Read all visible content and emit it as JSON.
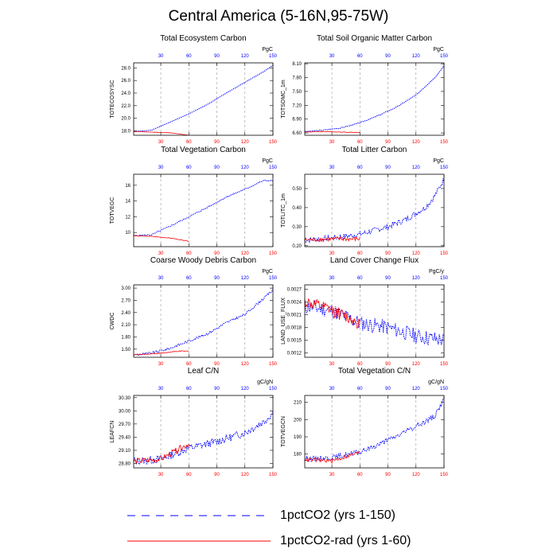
{
  "figure": {
    "title": "Central America (5-16N,95-75W)",
    "colors": {
      "series1": "#0000ff",
      "series2": "#ff0000",
      "axis": "#000000",
      "grid": "#999999"
    }
  },
  "legend": [
    {
      "label": "1pctCO2 (yrs 1-150)",
      "color": "#0000ff",
      "style": "dashed"
    },
    {
      "label": "1pctCO2-rad (yrs 1-60)",
      "color": "#ff0000",
      "style": "solid"
    }
  ],
  "chart_data": [
    {
      "type": "line",
      "title": "Total Ecosystem Carbon",
      "ylabel": "TOTECOSYSC",
      "unit": "PgC",
      "xlim": [
        1,
        150
      ],
      "ylim": [
        17.3,
        28.8
      ],
      "yticks": [
        18.0,
        20.0,
        22.0,
        24.0,
        26.0,
        28.0
      ],
      "ytick_labels": [
        "18.0",
        "20.0",
        "22.0",
        "24.0",
        "26.0",
        "28.0"
      ],
      "xticks": [
        30,
        60,
        90,
        120,
        150
      ],
      "grid": "vertical dashed at 30,60,90,120",
      "series": [
        {
          "name": "1pctCO2 (yrs 1-150)",
          "points": [
            [
              1,
              17.9
            ],
            [
              20,
              18.1
            ],
            [
              40,
              19.4
            ],
            [
              60,
              20.7
            ],
            [
              80,
              22.2
            ],
            [
              100,
              24.0
            ],
            [
              120,
              25.7
            ],
            [
              140,
              27.4
            ],
            [
              150,
              28.4
            ]
          ],
          "noise": 0,
          "seed": 1
        },
        {
          "name": "1pctCO2-rad (yrs 1-60)",
          "points": [
            [
              1,
              17.9
            ],
            [
              20,
              17.8
            ],
            [
              40,
              17.7
            ],
            [
              60,
              17.3
            ]
          ],
          "noise": 0,
          "seed": 2
        }
      ]
    },
    {
      "type": "line",
      "title": "Total Soil Organic Matter Carbon",
      "ylabel": "TOTSOMC_1m",
      "unit": "PgC",
      "xlim": [
        1,
        150
      ],
      "ylim": [
        6.55,
        8.12
      ],
      "yticks": [
        6.6,
        6.9,
        7.2,
        7.5,
        7.8,
        8.1
      ],
      "ytick_labels": [
        "6.60",
        "6.90",
        "7.20",
        "7.50",
        "7.80",
        "8.10"
      ],
      "xticks": [
        30,
        60,
        90,
        120,
        150
      ],
      "grid": "vertical dashed at 30,60,90,120",
      "series": [
        {
          "name": "1pctCO2 (yrs 1-150)",
          "points": [
            [
              1,
              6.63
            ],
            [
              20,
              6.66
            ],
            [
              40,
              6.71
            ],
            [
              60,
              6.82
            ],
            [
              80,
              6.98
            ],
            [
              100,
              7.17
            ],
            [
              120,
              7.42
            ],
            [
              140,
              7.8
            ],
            [
              150,
              8.05
            ]
          ],
          "noise": 0.01,
          "seed": 3
        },
        {
          "name": "1pctCO2-rad (yrs 1-60)",
          "points": [
            [
              1,
              6.62
            ],
            [
              20,
              6.63
            ],
            [
              40,
              6.62
            ],
            [
              60,
              6.61
            ]
          ],
          "noise": 0.005,
          "seed": 4
        }
      ]
    },
    {
      "type": "line",
      "title": "Total Vegetation Carbon",
      "ylabel": "TOTVEGC",
      "unit": "PgC",
      "xlim": [
        1,
        150
      ],
      "ylim": [
        8.2,
        17.4
      ],
      "yticks": [
        10,
        12,
        14,
        16
      ],
      "ytick_labels": [
        "10",
        "12",
        "14",
        "16"
      ],
      "xticks": [
        30,
        60,
        90,
        120,
        150
      ],
      "grid": "vertical dashed at 30,60,90,120",
      "series": [
        {
          "name": "1pctCO2 (yrs 1-150)",
          "points": [
            [
              1,
              9.6
            ],
            [
              20,
              9.7
            ],
            [
              40,
              10.8
            ],
            [
              60,
              12.0
            ],
            [
              80,
              13.2
            ],
            [
              100,
              14.5
            ],
            [
              120,
              15.5
            ],
            [
              140,
              16.6
            ],
            [
              150,
              16.6
            ]
          ],
          "noise": 0.08,
          "seed": 5
        },
        {
          "name": "1pctCO2-rad (yrs 1-60)",
          "points": [
            [
              1,
              9.6
            ],
            [
              20,
              9.5
            ],
            [
              40,
              9.3
            ],
            [
              60,
              8.9
            ]
          ],
          "noise": 0.03,
          "seed": 6
        }
      ]
    },
    {
      "type": "line",
      "title": "Total Litter Carbon",
      "ylabel": "TOTLITC_1m",
      "unit": "PgC",
      "xlim": [
        1,
        150
      ],
      "ylim": [
        0.195,
        0.575
      ],
      "yticks": [
        0.2,
        0.3,
        0.4,
        0.5
      ],
      "ytick_labels": [
        "0.20",
        "0.30",
        "0.40",
        "0.50"
      ],
      "xticks": [
        30,
        60,
        90,
        120,
        150
      ],
      "grid": "vertical dashed at 30,60,90,120",
      "series": [
        {
          "name": "1pctCO2 (yrs 1-150)",
          "points": [
            [
              1,
              0.23
            ],
            [
              30,
              0.24
            ],
            [
              60,
              0.26
            ],
            [
              90,
              0.3
            ],
            [
              110,
              0.34
            ],
            [
              130,
              0.4
            ],
            [
              140,
              0.46
            ],
            [
              150,
              0.55
            ]
          ],
          "noise": 0.015,
          "seed": 7
        },
        {
          "name": "1pctCO2-rad (yrs 1-60)",
          "points": [
            [
              1,
              0.23
            ],
            [
              30,
              0.235
            ],
            [
              60,
              0.235
            ]
          ],
          "noise": 0.012,
          "seed": 8
        }
      ]
    },
    {
      "type": "line",
      "title": "Coarse Woody Debris Carbon",
      "ylabel": "CWDC",
      "unit": "PgC",
      "xlim": [
        1,
        150
      ],
      "ylim": [
        1.3,
        3.08
      ],
      "yticks": [
        1.5,
        1.8,
        2.1,
        2.4,
        2.7,
        3.0
      ],
      "ytick_labels": [
        "1.50",
        "1.80",
        "2.10",
        "2.40",
        "2.70",
        "3.00"
      ],
      "xticks": [
        30,
        60,
        90,
        120,
        150
      ],
      "grid": "vertical dashed at 30,60,90,120",
      "series": [
        {
          "name": "1pctCO2 (yrs 1-150)",
          "points": [
            [
              1,
              1.36
            ],
            [
              20,
              1.4
            ],
            [
              40,
              1.52
            ],
            [
              60,
              1.7
            ],
            [
              80,
              1.88
            ],
            [
              100,
              2.15
            ],
            [
              120,
              2.35
            ],
            [
              140,
              2.75
            ],
            [
              150,
              2.95
            ]
          ],
          "noise": 0.03,
          "seed": 9
        },
        {
          "name": "1pctCO2-rad (yrs 1-60)",
          "points": [
            [
              1,
              1.36
            ],
            [
              30,
              1.4
            ],
            [
              50,
              1.45
            ],
            [
              60,
              1.45
            ]
          ],
          "noise": 0.01,
          "seed": 10
        }
      ]
    },
    {
      "type": "line",
      "title": "Land Cover Change Flux",
      "ylabel": "LAND_USE_FLUX",
      "unit": "PgC/y",
      "xlim": [
        1,
        150
      ],
      "ylim": [
        0.0011,
        0.0028
      ],
      "yticks": [
        0.0012,
        0.0015,
        0.0018,
        0.0021,
        0.0024,
        0.0027
      ],
      "ytick_labels": [
        "0.0012",
        "0.0015",
        "0.0018",
        "0.0021",
        "0.0024",
        "0.0027"
      ],
      "xticks": [
        30,
        60,
        90,
        120,
        150
      ],
      "grid": "vertical dashed at 30,60,90,120",
      "series": [
        {
          "name": "1pctCO2 (yrs 1-150)",
          "points": [
            [
              1,
              0.0023
            ],
            [
              30,
              0.0022
            ],
            [
              60,
              0.0019
            ],
            [
              90,
              0.0018
            ],
            [
              120,
              0.0016
            ],
            [
              150,
              0.0015
            ]
          ],
          "noise": 0.00018,
          "seed": 11
        },
        {
          "name": "1pctCO2-rad (yrs 1-60)",
          "points": [
            [
              1,
              0.0024
            ],
            [
              30,
              0.0022
            ],
            [
              60,
              0.0019
            ]
          ],
          "noise": 0.00015,
          "seed": 12
        }
      ]
    },
    {
      "type": "line",
      "title": "Leaf C/N",
      "ylabel": "LEAFCN",
      "unit": "gC/gN",
      "xlim": [
        1,
        150
      ],
      "ylim": [
        28.7,
        30.35
      ],
      "yticks": [
        28.8,
        29.1,
        29.4,
        29.7,
        30.0,
        30.3
      ],
      "ytick_labels": [
        "28.80",
        "29.10",
        "29.40",
        "29.70",
        "30.00",
        "30.30"
      ],
      "xticks": [
        30,
        60,
        90,
        120,
        150
      ],
      "grid": "vertical dashed at 30,60,90,120",
      "series": [
        {
          "name": "1pctCO2 (yrs 1-150)",
          "points": [
            [
              1,
              28.85
            ],
            [
              30,
              28.9
            ],
            [
              60,
              29.15
            ],
            [
              90,
              29.3
            ],
            [
              120,
              29.5
            ],
            [
              140,
              29.75
            ],
            [
              150,
              29.95
            ]
          ],
          "noise": 0.09,
          "seed": 13
        },
        {
          "name": "1pctCO2-rad (yrs 1-60)",
          "points": [
            [
              1,
              28.85
            ],
            [
              30,
              28.9
            ],
            [
              60,
              29.25
            ]
          ],
          "noise": 0.07,
          "seed": 14
        }
      ]
    },
    {
      "type": "line",
      "title": "Total Vegetation C/N",
      "ylabel": "TOTVEGCN",
      "unit": "gC/gN",
      "xlim": [
        1,
        150
      ],
      "ylim": [
        172,
        214
      ],
      "yticks": [
        180,
        190,
        200,
        210
      ],
      "ytick_labels": [
        "180",
        "190",
        "200",
        "210"
      ],
      "xticks": [
        30,
        60,
        90,
        120,
        150
      ],
      "grid": "vertical dashed at 30,60,90,120",
      "series": [
        {
          "name": "1pctCO2 (yrs 1-150)",
          "points": [
            [
              1,
              177
            ],
            [
              30,
              178
            ],
            [
              60,
              181
            ],
            [
              90,
              188
            ],
            [
              120,
              196
            ],
            [
              140,
              202
            ],
            [
              150,
              212
            ]
          ],
          "noise": 1.5,
          "seed": 15
        },
        {
          "name": "1pctCO2-rad (yrs 1-60)",
          "points": [
            [
              1,
              177
            ],
            [
              30,
              176
            ],
            [
              60,
              181
            ]
          ],
          "noise": 1.2,
          "seed": 16
        }
      ]
    }
  ]
}
